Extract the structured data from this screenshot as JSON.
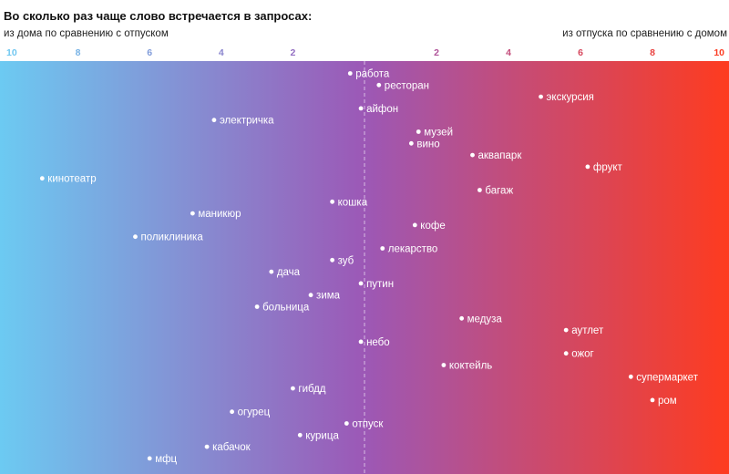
{
  "title": "Во сколько раз чаще слово встречается в запросах:",
  "left_label": "из дома по сравнению с отпуском",
  "right_label": "из отпуска по сравнению с домом",
  "colors": {
    "home": "#6ccaf2",
    "middle": "#9c58b6",
    "vacation": "#fe3b1f",
    "dot": "#ffffff"
  },
  "chart_data": {
    "type": "scatter",
    "axis": {
      "ticks": [
        {
          "label": "10",
          "value": -10
        },
        {
          "label": "8",
          "value": -8
        },
        {
          "label": "6",
          "value": -6
        },
        {
          "label": "4",
          "value": -4
        },
        {
          "label": "2",
          "value": -2
        },
        {
          "label": "2",
          "value": 2
        },
        {
          "label": "4",
          "value": 4
        },
        {
          "label": "6",
          "value": 6
        },
        {
          "label": "8",
          "value": 8
        },
        {
          "label": "10",
          "value": 10
        }
      ]
    },
    "points": [
      {
        "word": "работа",
        "x": -0.4
      },
      {
        "word": "ресторан",
        "x": 0.4
      },
      {
        "word": "экскурсия",
        "x": 4.9
      },
      {
        "word": "айфон",
        "x": -0.1
      },
      {
        "word": "электричка",
        "x": -4.2
      },
      {
        "word": "музей",
        "x": 1.5
      },
      {
        "word": "вино",
        "x": 1.3
      },
      {
        "word": "аквапарк",
        "x": 3.0
      },
      {
        "word": "фрукт",
        "x": 6.2
      },
      {
        "word": "кинотеатр",
        "x": -9.0
      },
      {
        "word": "багаж",
        "x": 3.2
      },
      {
        "word": "кошка",
        "x": -0.9
      },
      {
        "word": "маникюр",
        "x": -4.8
      },
      {
        "word": "кофе",
        "x": 1.4
      },
      {
        "word": "поликлиника",
        "x": -6.4
      },
      {
        "word": "лекарство",
        "x": 0.5
      },
      {
        "word": "зуб",
        "x": -0.9
      },
      {
        "word": "дача",
        "x": -2.6
      },
      {
        "word": "путин",
        "x": -0.1
      },
      {
        "word": "зима",
        "x": -1.5
      },
      {
        "word": "больница",
        "x": -3.0
      },
      {
        "word": "медуза",
        "x": 2.7
      },
      {
        "word": "аутлет",
        "x": 5.6
      },
      {
        "word": "небо",
        "x": -0.1
      },
      {
        "word": "ожог",
        "x": 5.6
      },
      {
        "word": "коктейль",
        "x": 2.2
      },
      {
        "word": "супермаркет",
        "x": 7.4
      },
      {
        "word": "гибдд",
        "x": -2.0
      },
      {
        "word": "ром",
        "x": 8.0
      },
      {
        "word": "огурец",
        "x": -3.7
      },
      {
        "word": "отпуск",
        "x": -0.5
      },
      {
        "word": "курица",
        "x": -1.8
      },
      {
        "word": "кабачок",
        "x": -4.4
      },
      {
        "word": "мфц",
        "x": -6.0
      }
    ]
  }
}
